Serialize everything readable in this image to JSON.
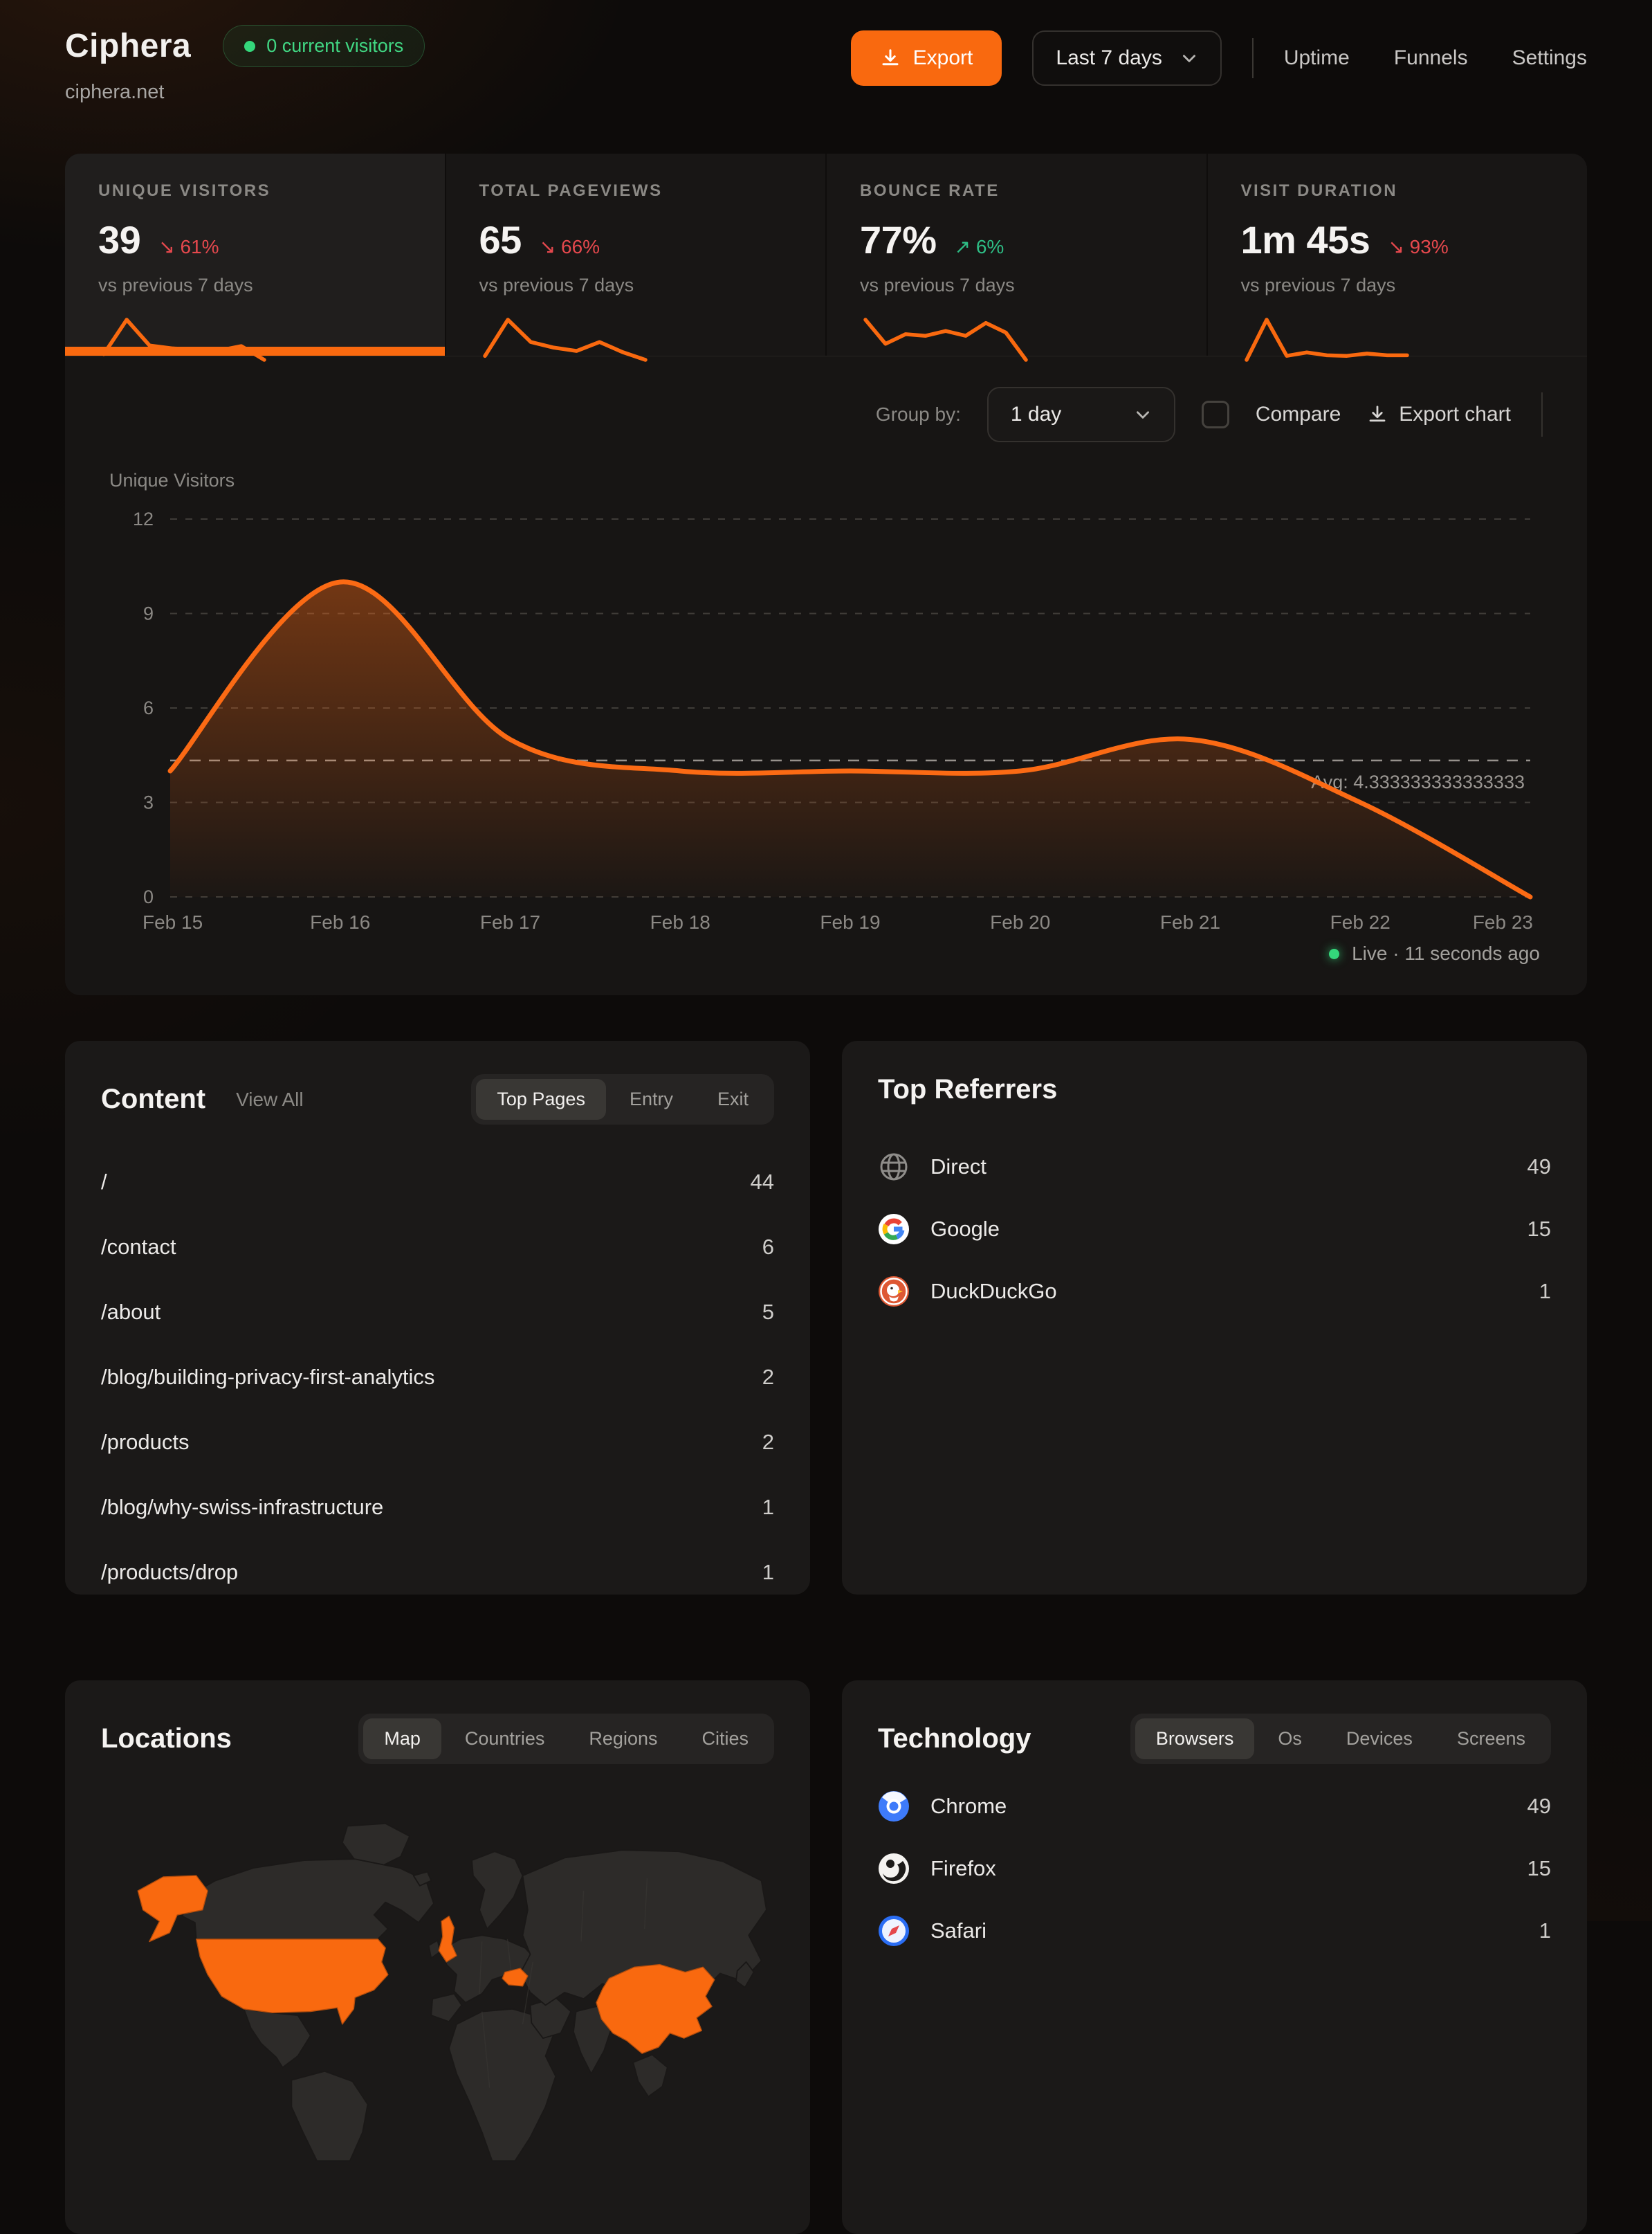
{
  "header": {
    "app_name": "Ciphera",
    "domain": "ciphera.net",
    "visitors_badge": "0 current visitors",
    "export_label": "Export",
    "date_range": "Last 7 days",
    "nav": {
      "uptime": "Uptime",
      "funnels": "Funnels",
      "settings": "Settings"
    }
  },
  "stats": [
    {
      "label": "UNIQUE VISITORS",
      "value": "39",
      "delta": "61%",
      "direction": "down",
      "sub": "vs previous 7 days",
      "spark": [
        3,
        9,
        4.5,
        4,
        3.8,
        3.6,
        4.4,
        2
      ]
    },
    {
      "label": "TOTAL PAGEVIEWS",
      "value": "65",
      "delta": "66%",
      "direction": "down",
      "sub": "vs previous 7 days",
      "spark": [
        2.5,
        9,
        5,
        4,
        3.4,
        5,
        3.2,
        1.8
      ]
    },
    {
      "label": "BOUNCE RATE",
      "value": "77%",
      "delta": "6%",
      "direction": "up",
      "sub": "vs previous 7 days",
      "spark": [
        6,
        3,
        4.2,
        4,
        4.6,
        4,
        5.6,
        4.4,
        1
      ]
    },
    {
      "label": "VISIT DURATION",
      "value": "1m 45s",
      "delta": "93%",
      "direction": "down",
      "sub": "vs previous 7 days",
      "spark": [
        1.5,
        8.5,
        2.2,
        2.8,
        2.3,
        2.2,
        2.6,
        2.3,
        2.3
      ]
    }
  ],
  "chart_controls": {
    "group_by_label": "Group by:",
    "group_by_value": "1 day",
    "compare_label": "Compare",
    "export_chart_label": "Export chart"
  },
  "chart_data": {
    "type": "area",
    "title": "Unique Visitors",
    "ylabel": "Unique Visitors",
    "x": [
      "Feb 15",
      "Feb 16",
      "Feb 17",
      "Feb 18",
      "Feb 19",
      "Feb 20",
      "Feb 21",
      "Feb 22",
      "Feb 23"
    ],
    "values": [
      4,
      10,
      5,
      4,
      4,
      4,
      5,
      3,
      0
    ],
    "ylim": [
      0,
      12
    ],
    "yticks": [
      0,
      3,
      6,
      9,
      12
    ],
    "grid": "dashed",
    "avg_value": 4.333333333333333,
    "avg_label": "Avg: 4.333333333333333",
    "line_color": "#fb6a14"
  },
  "live_status": "Live · 11 seconds ago",
  "content": {
    "title": "Content",
    "view_all": "View All",
    "tabs": [
      "Top Pages",
      "Entry",
      "Exit"
    ],
    "active_tab": "Top Pages",
    "rows": [
      {
        "path": "/",
        "value": "44"
      },
      {
        "path": "/contact",
        "value": "6"
      },
      {
        "path": "/about",
        "value": "5"
      },
      {
        "path": "/blog/building-privacy-first-analytics",
        "value": "2"
      },
      {
        "path": "/products",
        "value": "2"
      },
      {
        "path": "/blog/why-swiss-infrastructure",
        "value": "1"
      },
      {
        "path": "/products/drop",
        "value": "1"
      }
    ]
  },
  "referrers": {
    "title": "Top Referrers",
    "rows": [
      {
        "name": "Direct",
        "value": "49",
        "icon": "globe-icon"
      },
      {
        "name": "Google",
        "value": "15",
        "icon": "google-icon"
      },
      {
        "name": "DuckDuckGo",
        "value": "1",
        "icon": "duckduckgo-icon"
      }
    ]
  },
  "locations": {
    "title": "Locations",
    "tabs": [
      "Map",
      "Countries",
      "Regions",
      "Cities"
    ],
    "active_tab": "Map",
    "highlighted_regions": [
      "United States",
      "Alaska",
      "United Kingdom",
      "Romania",
      "China"
    ]
  },
  "technology": {
    "title": "Technology",
    "tabs": [
      "Browsers",
      "Os",
      "Devices",
      "Screens"
    ],
    "active_tab": "Browsers",
    "rows": [
      {
        "name": "Chrome",
        "value": "49",
        "icon": "chrome-icon"
      },
      {
        "name": "Firefox",
        "value": "15",
        "icon": "firefox-icon"
      },
      {
        "name": "Safari",
        "value": "1",
        "icon": "safari-icon"
      }
    ]
  },
  "colors": {
    "accent": "#f9690f",
    "negative": "#e5484d",
    "positive": "#2ebd85",
    "live": "#34d77b"
  }
}
